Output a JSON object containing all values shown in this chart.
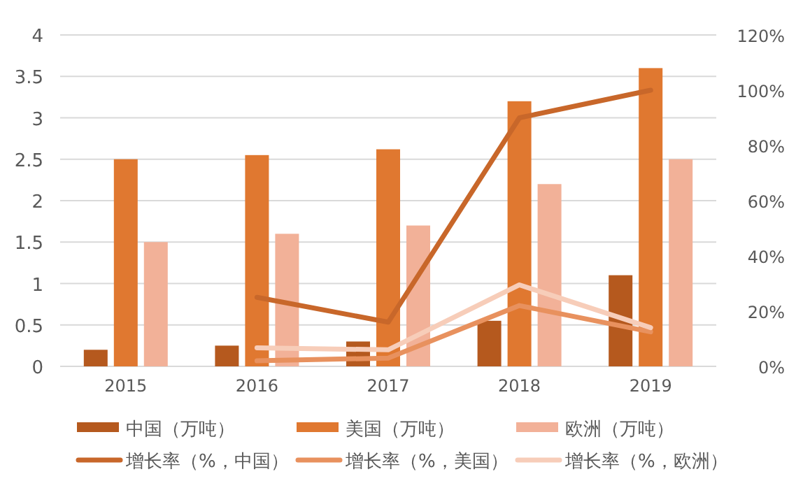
{
  "chart_data": {
    "type": "bar",
    "categories": [
      "2015",
      "2016",
      "2017",
      "2018",
      "2019"
    ],
    "series": [
      {
        "name": "中国（万吨）",
        "color": "#b5591e",
        "values": [
          0.2,
          0.25,
          0.3,
          0.55,
          1.1
        ]
      },
      {
        "name": "美国（万吨）",
        "color": "#e07830",
        "values": [
          2.5,
          2.55,
          2.62,
          3.2,
          3.6
        ]
      },
      {
        "name": "欧洲（万吨）",
        "color": "#f2b198",
        "values": [
          1.5,
          1.6,
          1.7,
          2.2,
          2.5
        ]
      },
      {
        "name": "增长率（%，中国）",
        "type": "line",
        "axis": "y2",
        "color": "#c8672a",
        "values": [
          null,
          25,
          16,
          90,
          100
        ]
      },
      {
        "name": "增长率（%，美国）",
        "type": "line",
        "axis": "y2",
        "color": "#e8915e",
        "values": [
          null,
          2,
          3,
          22,
          12.5
        ]
      },
      {
        "name": "增长率（%，欧洲）",
        "type": "line",
        "axis": "y2",
        "color": "#f7cdb9",
        "values": [
          null,
          6.7,
          6,
          29.5,
          14
        ]
      }
    ],
    "ylim": [
      0,
      4
    ],
    "yticks": [
      0,
      0.5,
      1,
      1.5,
      2,
      2.5,
      3,
      3.5,
      4
    ],
    "y2lim": [
      0,
      120
    ],
    "y2ticks": [
      {
        "value": 0,
        "label": "0%"
      },
      {
        "value": 20,
        "label": "20%"
      },
      {
        "value": 40,
        "label": "40%"
      },
      {
        "value": 60,
        "label": "60%"
      },
      {
        "value": 80,
        "label": "80%"
      },
      {
        "value": 100,
        "label": "100%"
      },
      {
        "value": 120,
        "label": "120%"
      }
    ],
    "grid": "y",
    "legend": "bottom"
  }
}
